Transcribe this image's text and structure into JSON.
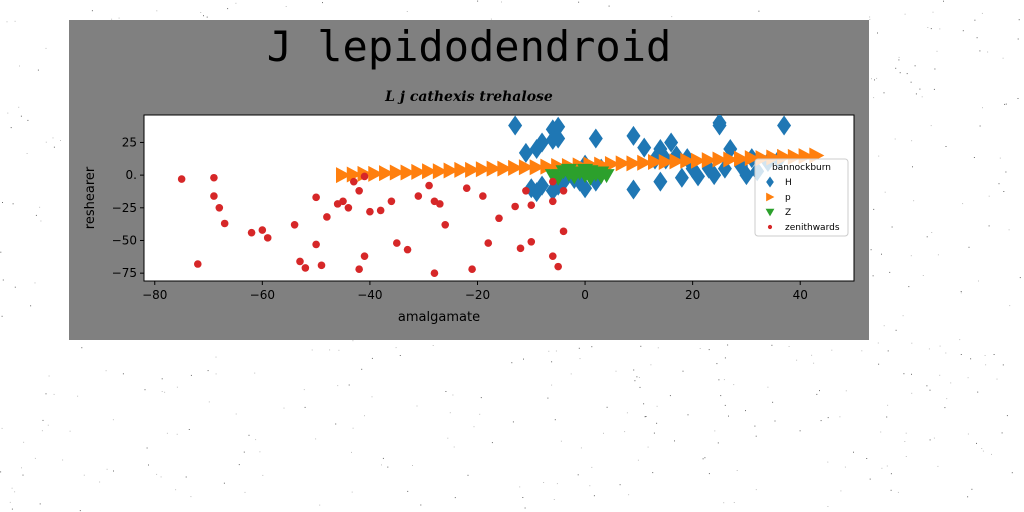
{
  "colors": {
    "figure_bg": "#808080",
    "plot_bg": "#ffffff",
    "H": "#1f77b4",
    "p": "#ff7f0e",
    "Z": "#2ca02c",
    "zenithwards": "#d62728"
  },
  "chart_data": {
    "type": "scatter",
    "title": "J lepidodendroid",
    "subtitle": "L j cathexis trehalose",
    "xlabel": "amalgamate",
    "ylabel": "reshearer",
    "xlim": [
      -82,
      50
    ],
    "ylim": [
      -81,
      46
    ],
    "xticks": [
      -80,
      -60,
      -40,
      -20,
      0,
      20,
      40
    ],
    "yticks": [
      25,
      0,
      -25,
      -50,
      -75
    ],
    "xtick_labels": [
      "−80",
      "−60",
      "−40",
      "−20",
      "0",
      "20",
      "40"
    ],
    "ytick_labels": [
      "25",
      "0.",
      "−25",
      "−50",
      "−75"
    ],
    "grid": false,
    "legend": {
      "title": "bannockburn",
      "placement": "right"
    },
    "series": [
      {
        "name": "H",
        "marker": "diamond",
        "points": [
          [
            -13,
            38
          ],
          [
            -11,
            17
          ],
          [
            -9,
            20
          ],
          [
            -8,
            25
          ],
          [
            -6,
            27
          ],
          [
            -6,
            35
          ],
          [
            -5,
            37
          ],
          [
            -5,
            28
          ],
          [
            -10,
            -10
          ],
          [
            -9,
            -13
          ],
          [
            -8,
            -8
          ],
          [
            -6,
            -12
          ],
          [
            -5,
            -8
          ],
          [
            -4,
            -5
          ],
          [
            -2,
            -3
          ],
          [
            -1,
            -5
          ],
          [
            0,
            -10
          ],
          [
            0,
            8
          ],
          [
            2,
            28
          ],
          [
            2,
            -5
          ],
          [
            3,
            5
          ],
          [
            9,
            30
          ],
          [
            9,
            -11
          ],
          [
            11,
            21
          ],
          [
            13,
            12
          ],
          [
            14,
            20
          ],
          [
            14,
            -5
          ],
          [
            15,
            12
          ],
          [
            16,
            25
          ],
          [
            17,
            15
          ],
          [
            18,
            -2
          ],
          [
            19,
            13
          ],
          [
            20,
            5
          ],
          [
            21,
            -1
          ],
          [
            23,
            5
          ],
          [
            24,
            0
          ],
          [
            25,
            38
          ],
          [
            25,
            40
          ],
          [
            26,
            5
          ],
          [
            27,
            20
          ],
          [
            29,
            7
          ],
          [
            30,
            0
          ],
          [
            31,
            13
          ],
          [
            32,
            3
          ],
          [
            34,
            10
          ],
          [
            36,
            12
          ],
          [
            37,
            38
          ]
        ]
      },
      {
        "name": "p",
        "marker": "triangle-right",
        "points": [
          [
            -45,
            0
          ],
          [
            -43,
            0.5
          ],
          [
            -41,
            1
          ],
          [
            -39,
            1
          ],
          [
            -37,
            1.5
          ],
          [
            -35,
            2
          ],
          [
            -33,
            2
          ],
          [
            -31,
            2.5
          ],
          [
            -29,
            3
          ],
          [
            -27,
            3
          ],
          [
            -25,
            3.5
          ],
          [
            -23,
            4
          ],
          [
            -21,
            4
          ],
          [
            -19,
            4.5
          ],
          [
            -17,
            5
          ],
          [
            -15,
            5
          ],
          [
            -13,
            5.5
          ],
          [
            -11,
            6
          ],
          [
            -9,
            6
          ],
          [
            -7,
            6.5
          ],
          [
            -5,
            7
          ],
          [
            -3,
            7
          ],
          [
            -1,
            7.5
          ],
          [
            1,
            8
          ],
          [
            3,
            8
          ],
          [
            5,
            8.5
          ],
          [
            7,
            9
          ],
          [
            9,
            9
          ],
          [
            11,
            9.5
          ],
          [
            13,
            10
          ],
          [
            15,
            10
          ],
          [
            17,
            10.5
          ],
          [
            19,
            11
          ],
          [
            21,
            11
          ],
          [
            23,
            11.5
          ],
          [
            25,
            12
          ],
          [
            27,
            12
          ],
          [
            29,
            12.5
          ],
          [
            31,
            13
          ],
          [
            33,
            13
          ],
          [
            35,
            13.5
          ],
          [
            37,
            14
          ],
          [
            39,
            14
          ],
          [
            41,
            14.5
          ],
          [
            43,
            15
          ]
        ]
      },
      {
        "name": "Z",
        "marker": "triangle-down",
        "points": [
          [
            -6,
            0
          ],
          [
            -5,
            -2
          ],
          [
            -4,
            3
          ],
          [
            -3,
            1
          ],
          [
            -2,
            -1
          ],
          [
            -1,
            2
          ],
          [
            0,
            0
          ],
          [
            1,
            3
          ],
          [
            1,
            -2
          ],
          [
            2,
            1
          ],
          [
            3,
            -1
          ],
          [
            3,
            2
          ],
          [
            4,
            0
          ],
          [
            -3,
            4
          ],
          [
            0,
            4
          ]
        ]
      },
      {
        "name": "zenithwards",
        "marker": "circle",
        "points": [
          [
            -75,
            -3
          ],
          [
            -72,
            -68
          ],
          [
            -69,
            -2
          ],
          [
            -69,
            -16
          ],
          [
            -68,
            -25
          ],
          [
            -67,
            -37
          ],
          [
            -62,
            -44
          ],
          [
            -60,
            -42
          ],
          [
            -59,
            -48
          ],
          [
            -54,
            -38
          ],
          [
            -53,
            -66
          ],
          [
            -52,
            -71
          ],
          [
            -50,
            -17
          ],
          [
            -50,
            -53
          ],
          [
            -49,
            -69
          ],
          [
            -48,
            -32
          ],
          [
            -46,
            -22
          ],
          [
            -45,
            -20
          ],
          [
            -44,
            -25
          ],
          [
            -43,
            -5
          ],
          [
            -42,
            -72
          ],
          [
            -42,
            -12
          ],
          [
            -41,
            -1
          ],
          [
            -41,
            -62
          ],
          [
            -40,
            -28
          ],
          [
            -38,
            -27
          ],
          [
            -36,
            -20
          ],
          [
            -35,
            -52
          ],
          [
            -33,
            -57
          ],
          [
            -31,
            -16
          ],
          [
            -29,
            -8
          ],
          [
            -28,
            -20
          ],
          [
            -28,
            -75
          ],
          [
            -27,
            -22
          ],
          [
            -26,
            -38
          ],
          [
            -22,
            -10
          ],
          [
            -21,
            -72
          ],
          [
            -19,
            -16
          ],
          [
            -18,
            -52
          ],
          [
            -16,
            -33
          ],
          [
            -13,
            -24
          ],
          [
            -12,
            -56
          ],
          [
            -11,
            -12
          ],
          [
            -10,
            -23
          ],
          [
            -10,
            -51
          ],
          [
            -6,
            -5
          ],
          [
            -6,
            -20
          ],
          [
            -6,
            -62
          ],
          [
            -5,
            -70
          ],
          [
            -4,
            -43
          ],
          [
            -4,
            -12
          ]
        ]
      }
    ]
  }
}
